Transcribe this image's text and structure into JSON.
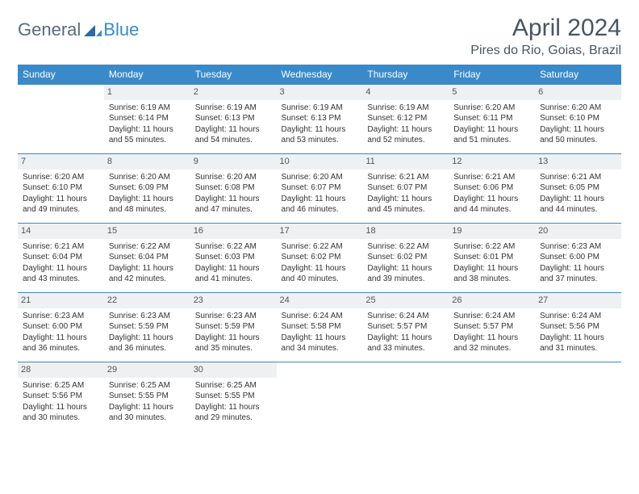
{
  "brand": {
    "text1": "General",
    "text2": "Blue"
  },
  "title": "April 2024",
  "location": "Pires do Rio, Goias, Brazil",
  "colors": {
    "header_bg": "#3a8ac9",
    "border": "#3a8ac9",
    "daynum_bg": "#eef0f2",
    "text": "#333333",
    "title_color": "#4a5560"
  },
  "weekdays": [
    "Sunday",
    "Monday",
    "Tuesday",
    "Wednesday",
    "Thursday",
    "Friday",
    "Saturday"
  ],
  "weeks": [
    [
      {
        "day": "",
        "sunrise": "",
        "sunset": "",
        "daylight": ""
      },
      {
        "day": "1",
        "sunrise": "Sunrise: 6:19 AM",
        "sunset": "Sunset: 6:14 PM",
        "daylight": "Daylight: 11 hours and 55 minutes."
      },
      {
        "day": "2",
        "sunrise": "Sunrise: 6:19 AM",
        "sunset": "Sunset: 6:13 PM",
        "daylight": "Daylight: 11 hours and 54 minutes."
      },
      {
        "day": "3",
        "sunrise": "Sunrise: 6:19 AM",
        "sunset": "Sunset: 6:13 PM",
        "daylight": "Daylight: 11 hours and 53 minutes."
      },
      {
        "day": "4",
        "sunrise": "Sunrise: 6:19 AM",
        "sunset": "Sunset: 6:12 PM",
        "daylight": "Daylight: 11 hours and 52 minutes."
      },
      {
        "day": "5",
        "sunrise": "Sunrise: 6:20 AM",
        "sunset": "Sunset: 6:11 PM",
        "daylight": "Daylight: 11 hours and 51 minutes."
      },
      {
        "day": "6",
        "sunrise": "Sunrise: 6:20 AM",
        "sunset": "Sunset: 6:10 PM",
        "daylight": "Daylight: 11 hours and 50 minutes."
      }
    ],
    [
      {
        "day": "7",
        "sunrise": "Sunrise: 6:20 AM",
        "sunset": "Sunset: 6:10 PM",
        "daylight": "Daylight: 11 hours and 49 minutes."
      },
      {
        "day": "8",
        "sunrise": "Sunrise: 6:20 AM",
        "sunset": "Sunset: 6:09 PM",
        "daylight": "Daylight: 11 hours and 48 minutes."
      },
      {
        "day": "9",
        "sunrise": "Sunrise: 6:20 AM",
        "sunset": "Sunset: 6:08 PM",
        "daylight": "Daylight: 11 hours and 47 minutes."
      },
      {
        "day": "10",
        "sunrise": "Sunrise: 6:20 AM",
        "sunset": "Sunset: 6:07 PM",
        "daylight": "Daylight: 11 hours and 46 minutes."
      },
      {
        "day": "11",
        "sunrise": "Sunrise: 6:21 AM",
        "sunset": "Sunset: 6:07 PM",
        "daylight": "Daylight: 11 hours and 45 minutes."
      },
      {
        "day": "12",
        "sunrise": "Sunrise: 6:21 AM",
        "sunset": "Sunset: 6:06 PM",
        "daylight": "Daylight: 11 hours and 44 minutes."
      },
      {
        "day": "13",
        "sunrise": "Sunrise: 6:21 AM",
        "sunset": "Sunset: 6:05 PM",
        "daylight": "Daylight: 11 hours and 44 minutes."
      }
    ],
    [
      {
        "day": "14",
        "sunrise": "Sunrise: 6:21 AM",
        "sunset": "Sunset: 6:04 PM",
        "daylight": "Daylight: 11 hours and 43 minutes."
      },
      {
        "day": "15",
        "sunrise": "Sunrise: 6:22 AM",
        "sunset": "Sunset: 6:04 PM",
        "daylight": "Daylight: 11 hours and 42 minutes."
      },
      {
        "day": "16",
        "sunrise": "Sunrise: 6:22 AM",
        "sunset": "Sunset: 6:03 PM",
        "daylight": "Daylight: 11 hours and 41 minutes."
      },
      {
        "day": "17",
        "sunrise": "Sunrise: 6:22 AM",
        "sunset": "Sunset: 6:02 PM",
        "daylight": "Daylight: 11 hours and 40 minutes."
      },
      {
        "day": "18",
        "sunrise": "Sunrise: 6:22 AM",
        "sunset": "Sunset: 6:02 PM",
        "daylight": "Daylight: 11 hours and 39 minutes."
      },
      {
        "day": "19",
        "sunrise": "Sunrise: 6:22 AM",
        "sunset": "Sunset: 6:01 PM",
        "daylight": "Daylight: 11 hours and 38 minutes."
      },
      {
        "day": "20",
        "sunrise": "Sunrise: 6:23 AM",
        "sunset": "Sunset: 6:00 PM",
        "daylight": "Daylight: 11 hours and 37 minutes."
      }
    ],
    [
      {
        "day": "21",
        "sunrise": "Sunrise: 6:23 AM",
        "sunset": "Sunset: 6:00 PM",
        "daylight": "Daylight: 11 hours and 36 minutes."
      },
      {
        "day": "22",
        "sunrise": "Sunrise: 6:23 AM",
        "sunset": "Sunset: 5:59 PM",
        "daylight": "Daylight: 11 hours and 36 minutes."
      },
      {
        "day": "23",
        "sunrise": "Sunrise: 6:23 AM",
        "sunset": "Sunset: 5:59 PM",
        "daylight": "Daylight: 11 hours and 35 minutes."
      },
      {
        "day": "24",
        "sunrise": "Sunrise: 6:24 AM",
        "sunset": "Sunset: 5:58 PM",
        "daylight": "Daylight: 11 hours and 34 minutes."
      },
      {
        "day": "25",
        "sunrise": "Sunrise: 6:24 AM",
        "sunset": "Sunset: 5:57 PM",
        "daylight": "Daylight: 11 hours and 33 minutes."
      },
      {
        "day": "26",
        "sunrise": "Sunrise: 6:24 AM",
        "sunset": "Sunset: 5:57 PM",
        "daylight": "Daylight: 11 hours and 32 minutes."
      },
      {
        "day": "27",
        "sunrise": "Sunrise: 6:24 AM",
        "sunset": "Sunset: 5:56 PM",
        "daylight": "Daylight: 11 hours and 31 minutes."
      }
    ],
    [
      {
        "day": "28",
        "sunrise": "Sunrise: 6:25 AM",
        "sunset": "Sunset: 5:56 PM",
        "daylight": "Daylight: 11 hours and 30 minutes."
      },
      {
        "day": "29",
        "sunrise": "Sunrise: 6:25 AM",
        "sunset": "Sunset: 5:55 PM",
        "daylight": "Daylight: 11 hours and 30 minutes."
      },
      {
        "day": "30",
        "sunrise": "Sunrise: 6:25 AM",
        "sunset": "Sunset: 5:55 PM",
        "daylight": "Daylight: 11 hours and 29 minutes."
      },
      {
        "day": "",
        "sunrise": "",
        "sunset": "",
        "daylight": ""
      },
      {
        "day": "",
        "sunrise": "",
        "sunset": "",
        "daylight": ""
      },
      {
        "day": "",
        "sunrise": "",
        "sunset": "",
        "daylight": ""
      },
      {
        "day": "",
        "sunrise": "",
        "sunset": "",
        "daylight": ""
      }
    ]
  ]
}
